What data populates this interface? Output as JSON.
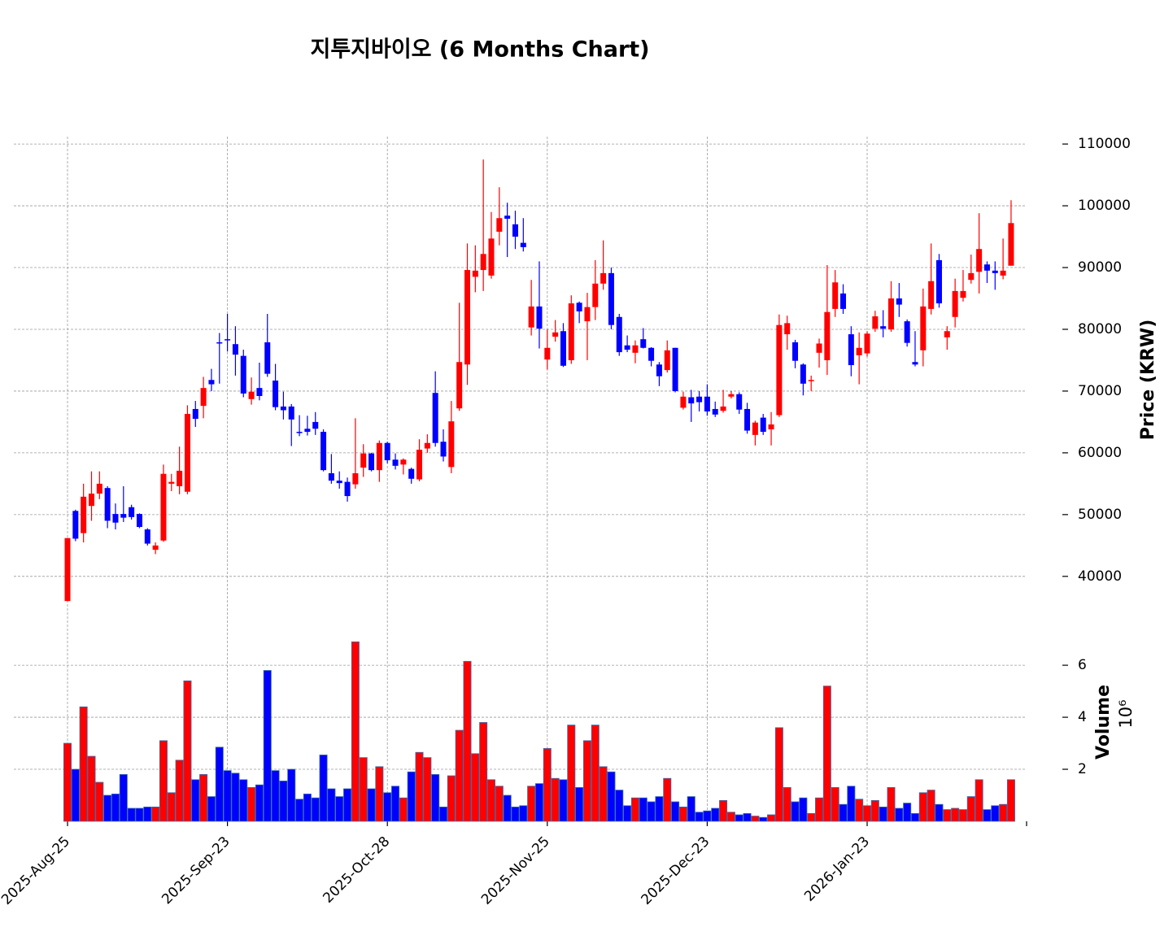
{
  "chart_data": {
    "type": "candlestick",
    "title": "지투지바이오 (6 Months Chart)",
    "y_label": "Price (KRW)",
    "volume_label": "Volume",
    "volume_scale": "10⁶",
    "categories": [
      "2025-Aug-25",
      null,
      null,
      null,
      null,
      null,
      null,
      null,
      null,
      null,
      null,
      null,
      null,
      null,
      null,
      null,
      null,
      null,
      null,
      null,
      "2025-Sep-23",
      null,
      null,
      null,
      null,
      null,
      null,
      null,
      null,
      null,
      null,
      null,
      null,
      null,
      null,
      null,
      null,
      null,
      null,
      null,
      "2025-Oct-28",
      null,
      null,
      null,
      null,
      null,
      null,
      null,
      null,
      null,
      null,
      null,
      null,
      null,
      null,
      null,
      null,
      null,
      null,
      null,
      "2025-Nov-25",
      null,
      null,
      null,
      null,
      null,
      null,
      null,
      null,
      null,
      null,
      null,
      null,
      null,
      null,
      null,
      null,
      null,
      null,
      null,
      "2025-Dec-23",
      null,
      null,
      null,
      null,
      null,
      null,
      null,
      null,
      null,
      null,
      null,
      null,
      null,
      null,
      null,
      null,
      null,
      null,
      null,
      "2026-Jan-23",
      null,
      null,
      null,
      null,
      null,
      null,
      null,
      null,
      null,
      null,
      null,
      null,
      null,
      null,
      null,
      null,
      null,
      null
    ],
    "open": [
      36000,
      50600,
      47000,
      51400,
      53400,
      54300,
      50100,
      50100,
      51200,
      50100,
      47600,
      44300,
      45800,
      55000,
      54600,
      53700,
      67100,
      67600,
      71800,
      77900,
      78400,
      77600,
      75700,
      68700,
      70500,
      77900,
      71700,
      67500,
      67500,
      63400,
      63900,
      65000,
      63400,
      56700,
      55500,
      55300,
      54900,
      57600,
      59900,
      57200,
      61600,
      58900,
      58100,
      57400,
      55700,
      60700,
      69700,
      61800,
      57700,
      67200,
      74300,
      88500,
      89600,
      88700,
      95800,
      98400,
      97000,
      94000,
      80300,
      83700,
      75100,
      78800,
      79700,
      75000,
      84300,
      81300,
      83600,
      87400,
      89100,
      82000,
      77400,
      76200,
      78400,
      77000,
      74300,
      73400,
      77000,
      67300,
      69000,
      69100,
      69100,
      67100,
      66800,
      69100,
      69500,
      67100,
      62900,
      65700,
      63800,
      66100,
      79200,
      77900,
      74300,
      71600,
      76200,
      75000,
      83300,
      85800,
      79200,
      75800,
      76100,
      80100,
      80500,
      80000,
      85000,
      81300,
      74700,
      76600,
      83300,
      91200,
      78700,
      82000,
      85100,
      88000,
      89300,
      90500,
      89500,
      88700,
      90300
    ],
    "high": [
      46200,
      50800,
      55000,
      57000,
      57000,
      54600,
      51800,
      54600,
      51600,
      50200,
      47800,
      45500,
      58100,
      56600,
      61000,
      67700,
      68400,
      72300,
      73600,
      79400,
      82500,
      80500,
      76700,
      72200,
      74600,
      82500,
      74400,
      69900,
      67900,
      66100,
      66000,
      66600,
      63800,
      59800,
      57000,
      56000,
      65600,
      61400,
      60000,
      62000,
      61800,
      59900,
      59100,
      57600,
      62200,
      63000,
      73200,
      63800,
      68400,
      84300,
      93900,
      93600,
      107500,
      99000,
      103000,
      100500,
      99200,
      98000,
      88000,
      91000,
      80000,
      81500,
      81000,
      85500,
      84500,
      85900,
      91200,
      94400,
      90000,
      82500,
      79000,
      78200,
      80200,
      77100,
      74700,
      78200,
      77000,
      69900,
      70200,
      70000,
      71100,
      68300,
      70200,
      70000,
      69800,
      68100,
      65200,
      66300,
      66600,
      82400,
      82200,
      78300,
      74500,
      72500,
      78500,
      90400,
      89600,
      87300,
      80500,
      79500,
      79700,
      83000,
      83100,
      87800,
      87500,
      81600,
      79700,
      86600,
      93900,
      92200,
      80500,
      88200,
      89600,
      92100,
      98800,
      91000,
      91000,
      94700,
      100900
    ],
    "low": [
      36000,
      45700,
      45500,
      49000,
      52500,
      47800,
      47600,
      48800,
      49200,
      47800,
      45000,
      43600,
      45600,
      53800,
      53300,
      53300,
      64200,
      65600,
      70000,
      71200,
      76400,
      72500,
      69000,
      67800,
      68500,
      72300,
      66900,
      65400,
      61100,
      62700,
      62800,
      62900,
      57000,
      55000,
      54200,
      52100,
      54200,
      56100,
      57000,
      55300,
      58300,
      57300,
      56500,
      55000,
      55400,
      60000,
      61000,
      58600,
      56700,
      66800,
      71000,
      86000,
      86200,
      88200,
      93600,
      91700,
      93000,
      92600,
      79000,
      76900,
      73500,
      78000,
      73900,
      74400,
      81000,
      75000,
      81500,
      86400,
      80000,
      75700,
      76300,
      74500,
      76900,
      74000,
      70800,
      73000,
      69800,
      67000,
      65000,
      66700,
      66000,
      65800,
      66500,
      68800,
      66300,
      63100,
      61200,
      62900,
      61200,
      65800,
      76700,
      73700,
      69300,
      70000,
      73800,
      72600,
      82000,
      82500,
      72400,
      71100,
      75600,
      79600,
      78700,
      79600,
      82000,
      77200,
      74000,
      74000,
      82400,
      83500,
      76700,
      80300,
      84500,
      87400,
      85800,
      87500,
      86400,
      88100,
      90300
    ],
    "close": [
      46200,
      46100,
      52900,
      53400,
      55000,
      49000,
      48700,
      49500,
      49600,
      48000,
      45300,
      45000,
      56600,
      55300,
      57100,
      66300,
      65500,
      70500,
      71100,
      77700,
      78300,
      75900,
      69600,
      69900,
      69200,
      72800,
      67400,
      66900,
      65400,
      63200,
      63400,
      63900,
      57200,
      55500,
      55100,
      53000,
      56700,
      59900,
      57200,
      61600,
      58800,
      57900,
      58900,
      55800,
      60500,
      61600,
      61600,
      59400,
      65100,
      74700,
      89600,
      89500,
      92200,
      94700,
      98000,
      97900,
      95000,
      93300,
      83700,
      80100,
      77000,
      79500,
      74100,
      84200,
      82900,
      83600,
      87400,
      89100,
      80700,
      76300,
      76700,
      77400,
      77000,
      74900,
      72400,
      76600,
      70000,
      69100,
      68000,
      68200,
      66700,
      66200,
      67500,
      69500,
      67000,
      63600,
      64900,
      63400,
      64600,
      80700,
      81000,
      74900,
      71200,
      71800,
      77700,
      82800,
      87600,
      83300,
      74200,
      77000,
      79300,
      82100,
      80100,
      85000,
      84000,
      77800,
      74300,
      83700,
      87800,
      84200,
      79700,
      86200,
      86200,
      89100,
      93000,
      89500,
      89100,
      89500,
      97200
    ],
    "volume": [
      3.0,
      2.0,
      4.4,
      2.5,
      1.5,
      1.0,
      1.05,
      1.8,
      0.5,
      0.5,
      0.55,
      0.55,
      3.1,
      1.1,
      2.35,
      5.4,
      1.6,
      1.8,
      0.95,
      2.85,
      1.95,
      1.85,
      1.6,
      1.3,
      1.4,
      5.8,
      1.95,
      1.55,
      2.0,
      0.85,
      1.05,
      0.9,
      2.55,
      1.25,
      0.95,
      1.25,
      6.9,
      2.45,
      1.25,
      2.1,
      1.1,
      1.35,
      0.9,
      1.9,
      2.65,
      2.45,
      1.8,
      0.55,
      1.75,
      3.5,
      6.15,
      2.6,
      3.8,
      1.6,
      1.35,
      1.0,
      0.55,
      0.6,
      1.35,
      1.45,
      2.8,
      1.65,
      1.6,
      3.7,
      1.3,
      3.1,
      3.7,
      2.1,
      1.9,
      1.2,
      0.6,
      0.9,
      0.9,
      0.75,
      0.95,
      1.65,
      0.75,
      0.55,
      0.95,
      0.35,
      0.4,
      0.5,
      0.8,
      0.35,
      0.25,
      0.3,
      0.2,
      0.15,
      0.25,
      3.6,
      1.3,
      0.75,
      0.9,
      0.3,
      0.9,
      5.2,
      1.3,
      0.65,
      1.35,
      0.85,
      0.6,
      0.8,
      0.55,
      1.3,
      0.5,
      0.7,
      0.3,
      1.1,
      1.2,
      0.65,
      0.45,
      0.5,
      0.45,
      0.95,
      1.6,
      0.45,
      0.6,
      0.65,
      1.6
    ],
    "ylim": [
      32600,
      111200
    ],
    "yticks": [
      40000,
      50000,
      60000,
      70000,
      80000,
      90000,
      100000,
      110000
    ],
    "volume_ylim": [
      0,
      7.66
    ],
    "volume_ticks": [
      2,
      4,
      6
    ],
    "up_color": "#ff0000",
    "down_color": "#0000ff",
    "grid": true
  }
}
